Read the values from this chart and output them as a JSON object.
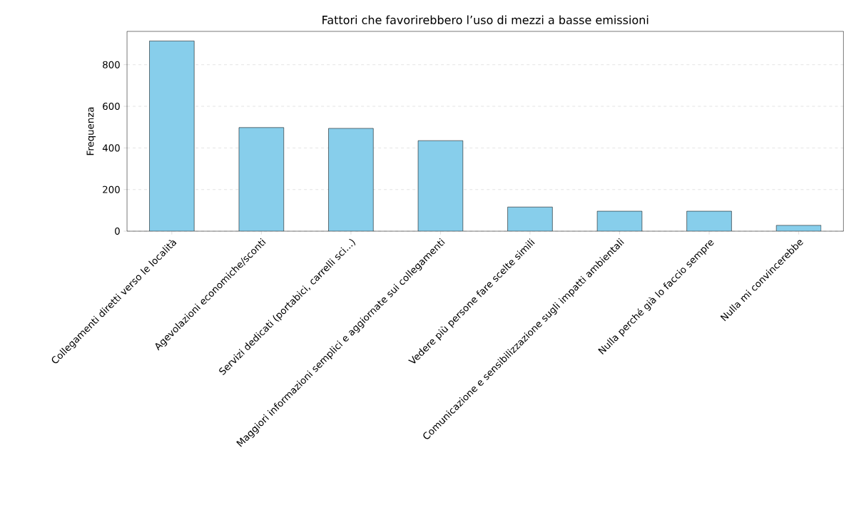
{
  "chart_data": {
    "type": "bar",
    "title": "Fattori che favorirebbero l’uso di mezzi a basse emissioni",
    "ylabel": "Frequenza",
    "categories": [
      "Collegamenti diretti verso le località",
      "Agevolazioni economiche/sconti",
      "Servizi dedicati (portabici, carrelli sci...)",
      "Maggiori informazioni semplici e aggiornate sui collegamenti",
      "Vedere più persone fare scelte simili",
      "Comunicazione e sensibilizzazione sugli impatti ambientali",
      "Nulla perché già lo faccio sempre",
      "Nulla mi convincerebbe"
    ],
    "values": [
      914,
      498,
      494,
      435,
      116,
      96,
      96,
      28
    ],
    "color": "#87ceeb",
    "ylim": [
      0,
      960
    ],
    "yticks": [
      0,
      200,
      400,
      600,
      800
    ],
    "grid": "y"
  }
}
